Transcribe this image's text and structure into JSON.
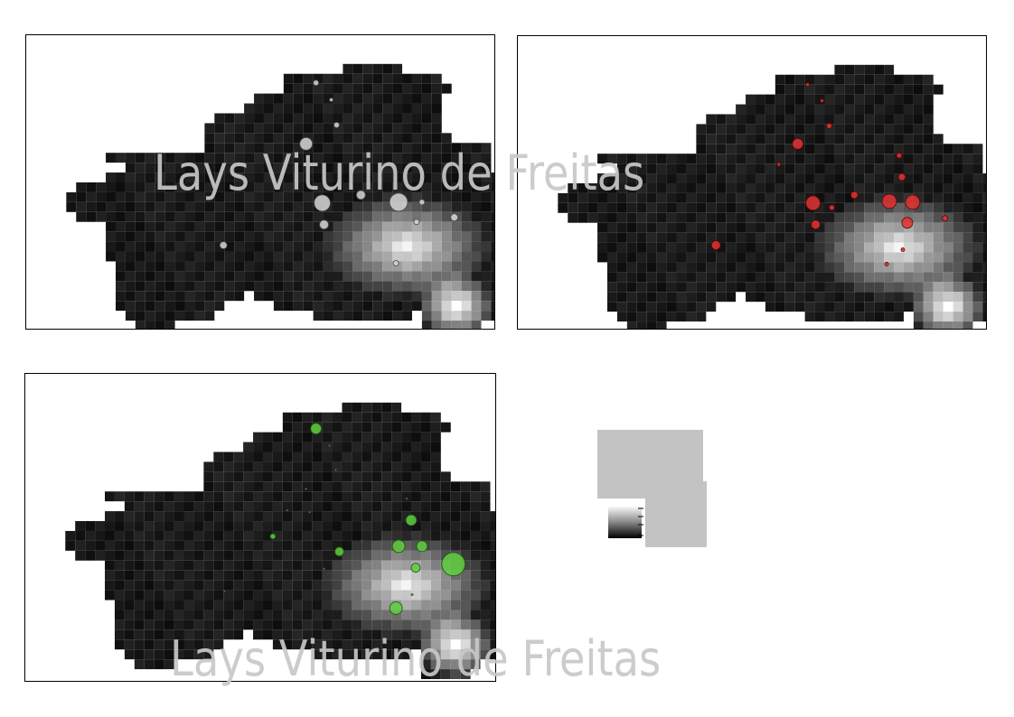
{
  "watermarks": [
    "Lays Viturino de Freitas",
    "Lays Viturino de Freitas"
  ],
  "colors": {
    "background": "#ffffff",
    "frame": "#000000",
    "marker_white": "#d8d8d8",
    "marker_red": "#e03434",
    "marker_green": "#5fcf3e",
    "legend_box": "#c3c3c3"
  },
  "maps": [
    {
      "id": "white-markers",
      "marker_color": "#d8d8d8",
      "marker_stroke": "#4a4a4a"
    },
    {
      "id": "red-markers",
      "marker_color": "#e03434",
      "marker_stroke": "#5a0000"
    },
    {
      "id": "green-markers",
      "marker_color": "#5fcf3e",
      "marker_stroke": "#1f4a10"
    }
  ],
  "legend": {
    "type": "grayscale-ramp",
    "low_color": "#000000",
    "high_color": "#ffffff"
  }
}
